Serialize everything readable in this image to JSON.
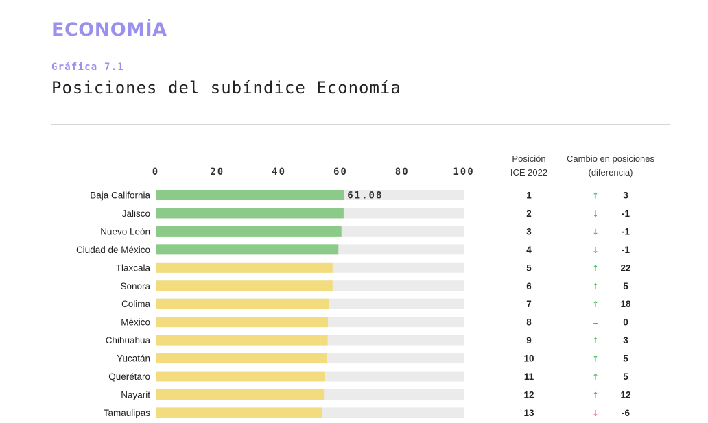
{
  "header": {
    "section_title": "ECONOMÍA",
    "figure_label": "Gráfica 7.1",
    "chart_title": "Posiciones del subíndice Economía"
  },
  "columns": {
    "position_header_line1": "Posición",
    "position_header_line2": "ICE 2022",
    "change_header_line1": "Cambio en posiciones",
    "change_header_line2": "(diferencia)"
  },
  "colors": {
    "section_title": "#9a90ee",
    "figure_label": "#9a90ee",
    "top_group": "#8cca8a",
    "other_group": "#f2dc7e",
    "track": "#ebebeb",
    "arrow_up": "#3dbb57",
    "arrow_down": "#e0556d",
    "equal": "#222222"
  },
  "chart_data": {
    "type": "bar",
    "orientation": "horizontal",
    "title": "Posiciones del subíndice Economía",
    "xlim": [
      0,
      100
    ],
    "ticks": [
      "0",
      "20",
      "40",
      "60",
      "80",
      "100"
    ],
    "grid": false,
    "categories": [
      "Baja California",
      "Jalisco",
      "Nuevo León",
      "Ciudad de México",
      "Tlaxcala",
      "Sonora",
      "Colima",
      "México",
      "Chihuahua",
      "Yucatán",
      "Querétaro",
      "Nayarit",
      "Tamaulipas"
    ],
    "values": [
      61.08,
      61.0,
      60.3,
      59.3,
      57.4,
      57.4,
      56.2,
      55.9,
      55.8,
      55.5,
      54.9,
      54.6,
      53.9
    ],
    "data_labels": [
      "61.08",
      "",
      "",
      "",
      "",
      "",
      "",
      "",
      "",
      "",
      "",
      "",
      ""
    ],
    "group": [
      "top",
      "top",
      "top",
      "top",
      "other",
      "other",
      "other",
      "other",
      "other",
      "other",
      "other",
      "other",
      "other"
    ],
    "position_ice_2022": [
      "1",
      "2",
      "3",
      "4",
      "5",
      "6",
      "7",
      "8",
      "9",
      "10",
      "11",
      "12",
      "13"
    ],
    "change_direction": [
      "up",
      "down",
      "down",
      "down",
      "up",
      "up",
      "up",
      "equal",
      "up",
      "up",
      "up",
      "up",
      "down"
    ],
    "change_glyph": [
      "↑",
      "↓",
      "↓",
      "↓",
      "↑",
      "↑",
      "↑",
      "=",
      "↑",
      "↑",
      "↑",
      "↑",
      "↓"
    ],
    "change_value": [
      "3",
      "-1",
      "-1",
      "-1",
      "22",
      "5",
      "18",
      "0",
      "3",
      "5",
      "5",
      "12",
      "-6"
    ]
  }
}
